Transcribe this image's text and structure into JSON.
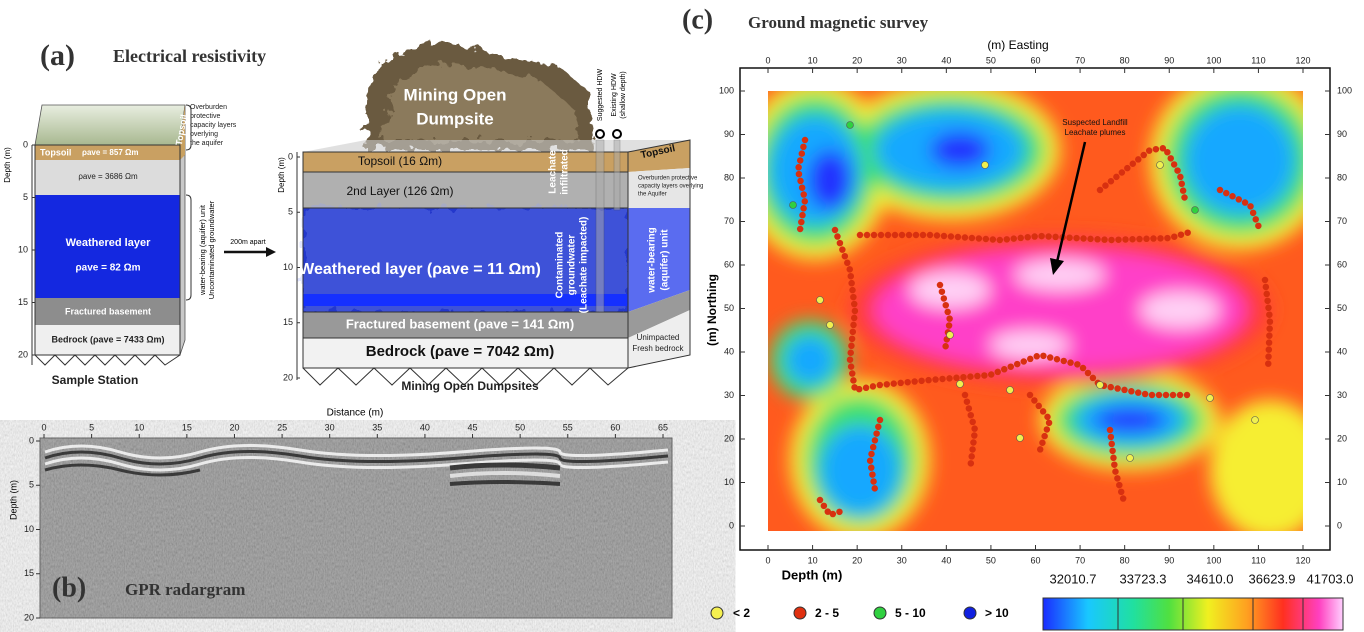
{
  "panel_a": {
    "letter": "(a)",
    "title": "Electrical resistivity",
    "depth_label": "Depth (m)",
    "left_depth_ticks": [
      0,
      5,
      10,
      15,
      20
    ],
    "right_depth_ticks": [
      0,
      5,
      10,
      15,
      20
    ],
    "sample": {
      "overburden": [
        "Overburden",
        "protective",
        "capacity layers",
        "overlying",
        "the aquifer"
      ],
      "topsoil_side": "Topsoil",
      "topsoil": "Topsoil",
      "topsoil_rho": "ρave = 857 Ωm",
      "second_rho": "ρave = 3686 Ωm",
      "weathered": "Weathered layer",
      "weathered_rho": "ρave = 82 Ωm",
      "fractured": "Fractured basement",
      "bedrock": "Bedrock (ρave = 7433 Ωm)",
      "aquifer": [
        "water-bearing (aquifer) unit",
        "Uncontaminated groundwater"
      ],
      "caption": "Sample Station"
    },
    "apart": "200m apart",
    "dumpsite": {
      "image_label": [
        "Mining Open",
        "Dumpsite"
      ],
      "suggested_hdw": "Suggested HDW",
      "existing_hdw": [
        "Existing HDW",
        "(shallow depth)"
      ],
      "topsoil": "Topsoil (16 Ωm)",
      "second": "2nd Layer (126 Ωm)",
      "weathered": "Weathered layer (ρave = 11 Ωm)",
      "fractured": "Fractured basement (ρave = 141 Ωm)",
      "bedrock": "Bedrock (ρave = 7042 Ωm)",
      "leachate": [
        "Leachate",
        "infiltrated"
      ],
      "contaminated": [
        "Contaminated",
        "groundwater",
        "(Leachate impacted)"
      ],
      "side_topsoil": "Topsoil",
      "side_overburden": [
        "Overburden protective",
        "capacity layers overlying",
        "the Aquifer"
      ],
      "side_aquifer": [
        "water-bearing",
        "(aquifer) unit"
      ],
      "side_bedrock": [
        "Unimpacted",
        "Fresh bedrock"
      ],
      "caption": "Mining Open Dumpsites"
    }
  },
  "panel_b": {
    "letter": "(b)",
    "title": "GPR radargram",
    "x_label": "Distance (m)",
    "y_label": "Depth (m)",
    "x_ticks": [
      0,
      5,
      10,
      15,
      20,
      25,
      30,
      35,
      40,
      45,
      50,
      55,
      60,
      65
    ],
    "y_ticks": [
      0,
      5,
      10,
      15,
      20
    ]
  },
  "panel_c": {
    "letter": "(c)",
    "title": "Ground magnetic survey",
    "x_label": "(m) Easting",
    "y_label": "(m) Northing",
    "bottom_label": "Depth (m)",
    "x_ticks": [
      0,
      10,
      20,
      30,
      40,
      50,
      60,
      70,
      80,
      90,
      100,
      110,
      120
    ],
    "y_ticks": [
      0,
      10,
      20,
      30,
      40,
      50,
      60,
      70,
      80,
      90,
      100
    ],
    "annotation": [
      "Suspected Landfill",
      "Leachate plumes"
    ],
    "legend": [
      "< 2",
      "2 - 5",
      "5 - 10",
      "> 10"
    ],
    "colorbar_labels": [
      "32010.7",
      "33723.3",
      "34610.0",
      "36623.9",
      "41703.0"
    ]
  }
}
